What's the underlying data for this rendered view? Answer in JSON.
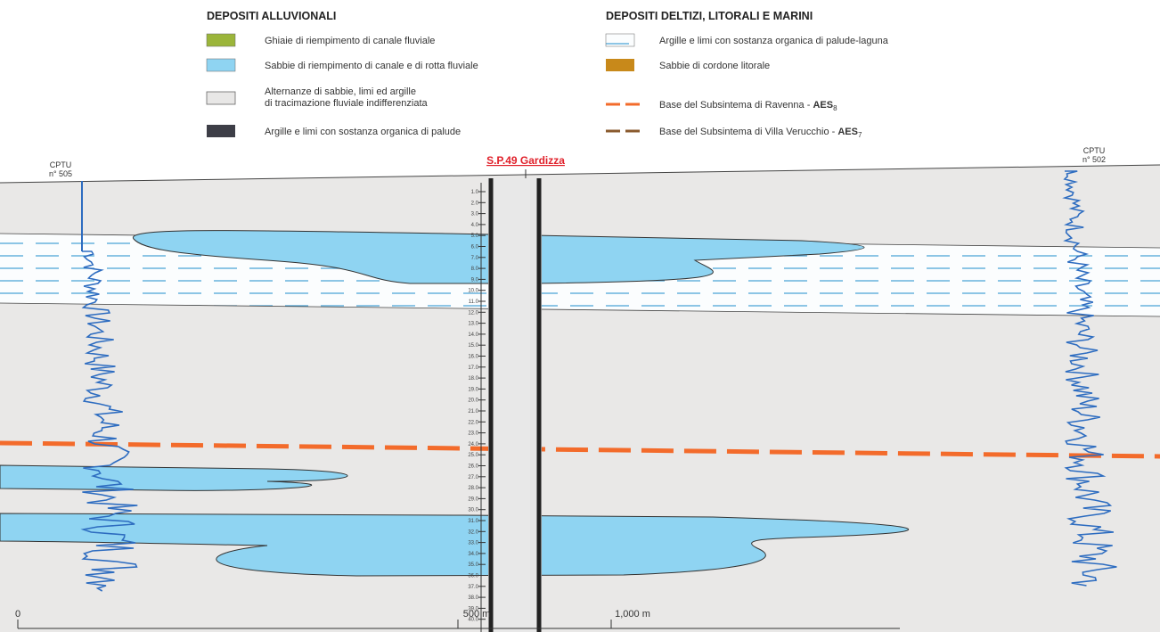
{
  "legend": {
    "alluvial": {
      "title": "DEPOSITI ALLUVIONALI",
      "items": [
        "Ghiaie di riempimento di canale fluviale",
        "Sabbie di riempimento di canale e di rotta fluviale",
        "Alternanze di sabbie, limi ed argille",
        "di tracimazione fluviale indifferenziata",
        "Argille e limi con sostanza organica di palude"
      ]
    },
    "marine": {
      "title": "DEPOSITI DELTIZI, LITORALI E MARINI",
      "items": [
        "Argille e limi con sostanza organica di palude-laguna",
        "Sabbie di cordone litorale"
      ]
    },
    "bases": [
      {
        "label": "Base del Subsintema di Ravenna - ",
        "code": "AES",
        "sub": "8"
      },
      {
        "label": "Base del Subsintema di Villa Verucchio - ",
        "code": "AES",
        "sub": "7"
      }
    ]
  },
  "section": {
    "borehole": "S.P.49 Gardizza",
    "cptu_left": [
      "CPTU",
      "n° 505"
    ],
    "cptu_right": [
      "CPTU",
      "n° 502"
    ],
    "depths": [
      "1.0",
      "2.0",
      "3.0",
      "4.0",
      "5.0",
      "6.0",
      "7.0",
      "8.0",
      "9.0",
      "10.0",
      "11.0",
      "12.0",
      "13.0",
      "14.0",
      "15.0",
      "16.0",
      "17.0",
      "18.0",
      "19.0",
      "20.0",
      "21.0",
      "22.0",
      "23.0",
      "24.0",
      "25.0",
      "26.0",
      "27.0",
      "28.0",
      "29.0",
      "30.0",
      "31.0",
      "32.0",
      "33.0",
      "34.0",
      "35.0",
      "36.0",
      "37.0",
      "38.0",
      "39.0",
      "40.0"
    ],
    "scale": [
      "0",
      "500 m",
      "1,000 m"
    ]
  }
}
